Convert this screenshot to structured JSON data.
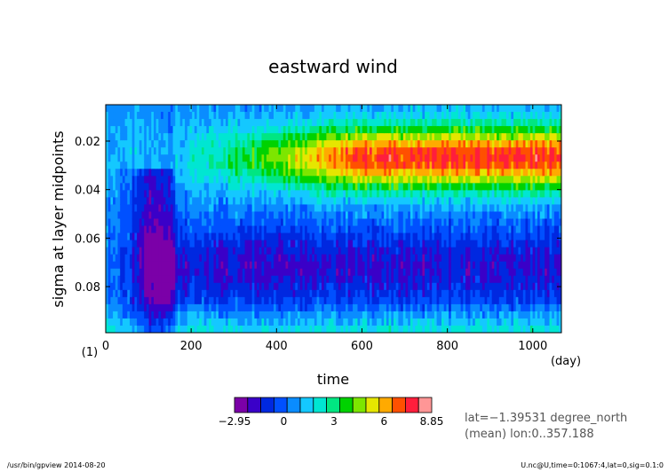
{
  "chart_data": {
    "type": "heatmap",
    "title": "eastward wind",
    "xlabel": "time",
    "x_unit": "(day)",
    "ylabel": "sigma at layer midpoints",
    "y_unit": "(1)",
    "xlim": [
      0,
      1067
    ],
    "ylim": [
      0.005,
      0.099
    ],
    "y_inverted": true,
    "xticks": [
      0,
      200,
      400,
      600,
      800,
      1000
    ],
    "yticks": [
      0.02,
      0.04,
      0.06,
      0.08
    ],
    "x_tick_labels": [
      "0",
      "200",
      "400",
      "600",
      "800",
      "1000"
    ],
    "y_tick_labels": [
      "0.02",
      "0.04",
      "0.06",
      "0.08"
    ],
    "colorbar": {
      "min": -2.95,
      "max": 8.85,
      "tick_labels": [
        "−2.95",
        "0",
        "3",
        "6",
        "8.85"
      ],
      "tick_values": [
        -2.95,
        0,
        3,
        6,
        8.85
      ],
      "colors": [
        "#7b00a8",
        "#3a00c8",
        "#0028e0",
        "#0050ff",
        "#0a8cff",
        "#14c8ff",
        "#00e6d2",
        "#00e682",
        "#00d200",
        "#7de600",
        "#e6e600",
        "#ffaa00",
        "#ff5000",
        "#ff1e3c",
        "#ff9696"
      ]
    },
    "field_summary": [
      {
        "region": "mid-height band, day 550-1067",
        "approx_value": 6.5
      },
      {
        "region": "sigma 0.06-0.09, day 150-1000",
        "approx_value": -1.5
      },
      {
        "region": "early period, day 50-150, lower levels",
        "approx_value": -2.0
      }
    ]
  },
  "annotations": {
    "lat": "lat=−1.39531 degree_north",
    "lon": "(mean) lon:0..357.188"
  },
  "footer": {
    "left": "/usr/bin/gpview  2014-08-20",
    "right": "U.nc@U,time=0:1067:4,lat=0,sig=0.1:0"
  }
}
